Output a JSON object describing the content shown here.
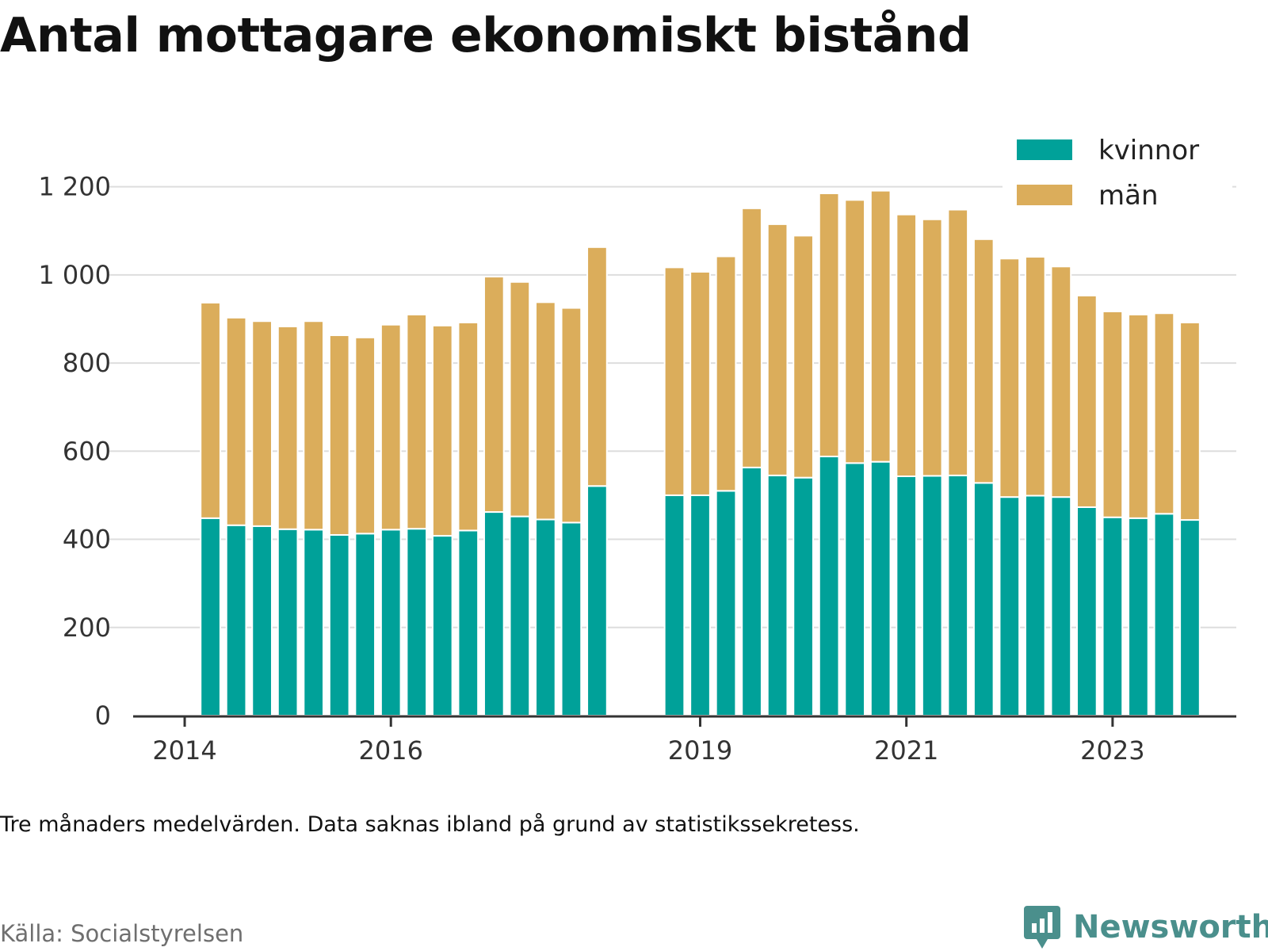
{
  "chart_data": {
    "type": "bar",
    "stacked": true,
    "title": "Antal mottagare ekonomiskt bistånd",
    "note": "Tre månaders medelvärden. Data saknas ibland på grund av statistikssekretess.",
    "source": "Källa: Socialstyrelsen",
    "brand": "Newsworthy",
    "ylim": [
      0,
      1300
    ],
    "yticks": [
      0,
      200,
      400,
      600,
      800,
      1000,
      1200
    ],
    "ytick_labels": [
      "0",
      "200",
      "400",
      "600",
      "800",
      "1 000",
      "1 200"
    ],
    "xticks": [
      2014,
      2016,
      2019,
      2021,
      2023
    ],
    "x_range": [
      2013.5,
      2024.2
    ],
    "legend_position": "top-right",
    "grid": true,
    "x": [
      2014.25,
      2014.5,
      2014.75,
      2015.0,
      2015.25,
      2015.5,
      2015.75,
      2016.0,
      2016.25,
      2016.5,
      2016.75,
      2017.0,
      2017.25,
      2017.5,
      2017.75,
      2018.0,
      2018.75,
      2019.0,
      2019.25,
      2019.5,
      2019.75,
      2020.0,
      2020.25,
      2020.5,
      2020.75,
      2021.0,
      2021.25,
      2021.5,
      2021.75,
      2022.0,
      2022.25,
      2022.5,
      2022.75,
      2023.0,
      2023.25,
      2023.5,
      2023.75
    ],
    "series": [
      {
        "name": "kvinnor",
        "color": "#00a199",
        "values": [
          448,
          432,
          430,
          423,
          422,
          410,
          413,
          422,
          424,
          408,
          420,
          462,
          452,
          445,
          438,
          521,
          500,
          500,
          510,
          563,
          545,
          540,
          588,
          573,
          576,
          543,
          544,
          545,
          528,
          496,
          499,
          496,
          473,
          450,
          448,
          458,
          444
        ]
      },
      {
        "name": "män",
        "color": "#dbad5b",
        "values": [
          489,
          471,
          465,
          460,
          473,
          453,
          445,
          465,
          486,
          477,
          472,
          534,
          532,
          493,
          487,
          542,
          517,
          507,
          532,
          588,
          570,
          549,
          597,
          597,
          615,
          594,
          582,
          603,
          553,
          541,
          542,
          523,
          480,
          467,
          462,
          455,
          448
        ]
      }
    ]
  }
}
